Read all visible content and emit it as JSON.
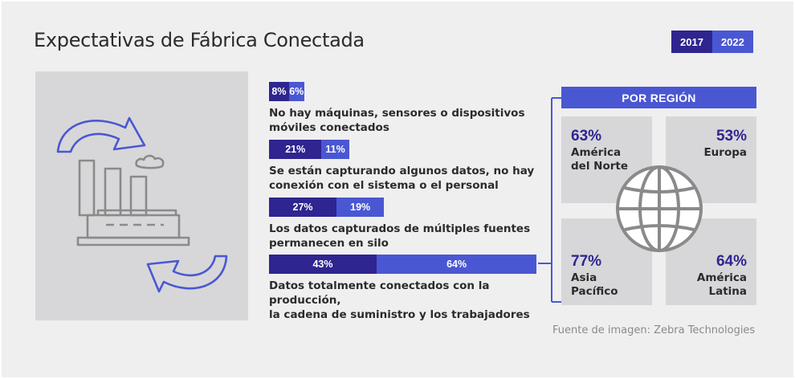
{
  "title": "Expectativas de Fábrica Conectada",
  "legend": {
    "y2017": "2017",
    "y2022": "2022"
  },
  "colors": {
    "y2017": "#2e2590",
    "y2022": "#4a57d3",
    "panel": "#d7d7d9",
    "icon": "#8a8a8a",
    "arrow": "#4a57d3"
  },
  "icons": {
    "illustration": "factory-with-cycle-arrows-icon",
    "globe": "globe-icon"
  },
  "chart_data": {
    "type": "bar",
    "orientation": "horizontal-stacked",
    "categories": [
      "No hay máquinas, sensores o dispositivos móviles conectados",
      "Se están capturando algunos datos, no hay conexión con el sistema o el personal",
      "Los datos capturados de múltiples fuentes permanecen en silo",
      "Datos totalmente conectados con la producción, la cadena de suministro y los trabajadores"
    ],
    "category_lines": [
      [
        "No hay máquinas, sensores o dispositivos",
        "móviles conectados"
      ],
      [
        "Se están capturando algunos datos, no hay",
        "conexión con el sistema o el personal"
      ],
      [
        "Los datos capturados de múltiples fuentes",
        "permanecen en silo"
      ],
      [
        "Datos totalmente conectados con la producción,",
        "la cadena de suministro y los trabajadores"
      ]
    ],
    "series": [
      {
        "name": "2017",
        "values": [
          8,
          21,
          27,
          43
        ],
        "labels": [
          "8%",
          "21%",
          "27%",
          "43%"
        ]
      },
      {
        "name": "2022",
        "values": [
          6,
          11,
          19,
          64
        ],
        "labels": [
          "6%",
          "11%",
          "19%",
          "64%"
        ]
      }
    ],
    "grid": false,
    "legend_position": "top-right"
  },
  "regions": {
    "header": "POR REGIÓN",
    "items": [
      {
        "pct": "63%",
        "name_lines": [
          "América",
          "del Norte"
        ]
      },
      {
        "pct": "53%",
        "name_lines": [
          "Europa"
        ]
      },
      {
        "pct": "77%",
        "name_lines": [
          "Asia",
          "Pacífico"
        ]
      },
      {
        "pct": "64%",
        "name_lines": [
          "América",
          "Latina"
        ]
      }
    ]
  },
  "source": "Fuente de imagen: Zebra Technologies"
}
